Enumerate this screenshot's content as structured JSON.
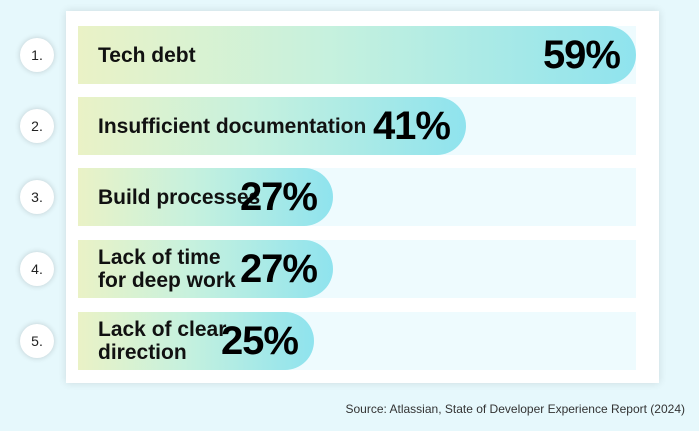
{
  "chart_data": {
    "type": "bar",
    "orientation": "horizontal",
    "ranks": [
      "1.",
      "2.",
      "3.",
      "4.",
      "5."
    ],
    "categories": [
      "Tech debt",
      "Insufficient documentation",
      "Build processes",
      "Lack of time\nfor deep work",
      "Lack of clear\ndirection"
    ],
    "values": [
      59,
      41,
      27,
      27,
      25
    ],
    "value_labels": [
      "59%",
      "41%",
      "27%",
      "27%",
      "25%"
    ],
    "unit": "%",
    "colors": {
      "bar_start": "#eaf2c6",
      "bar_mid": "#c6f1de",
      "bar_end": "#8fe3ee",
      "track": "#eefbfe"
    }
  },
  "source": "Source: Atlassian, State of Developer Experience Report (2024)"
}
